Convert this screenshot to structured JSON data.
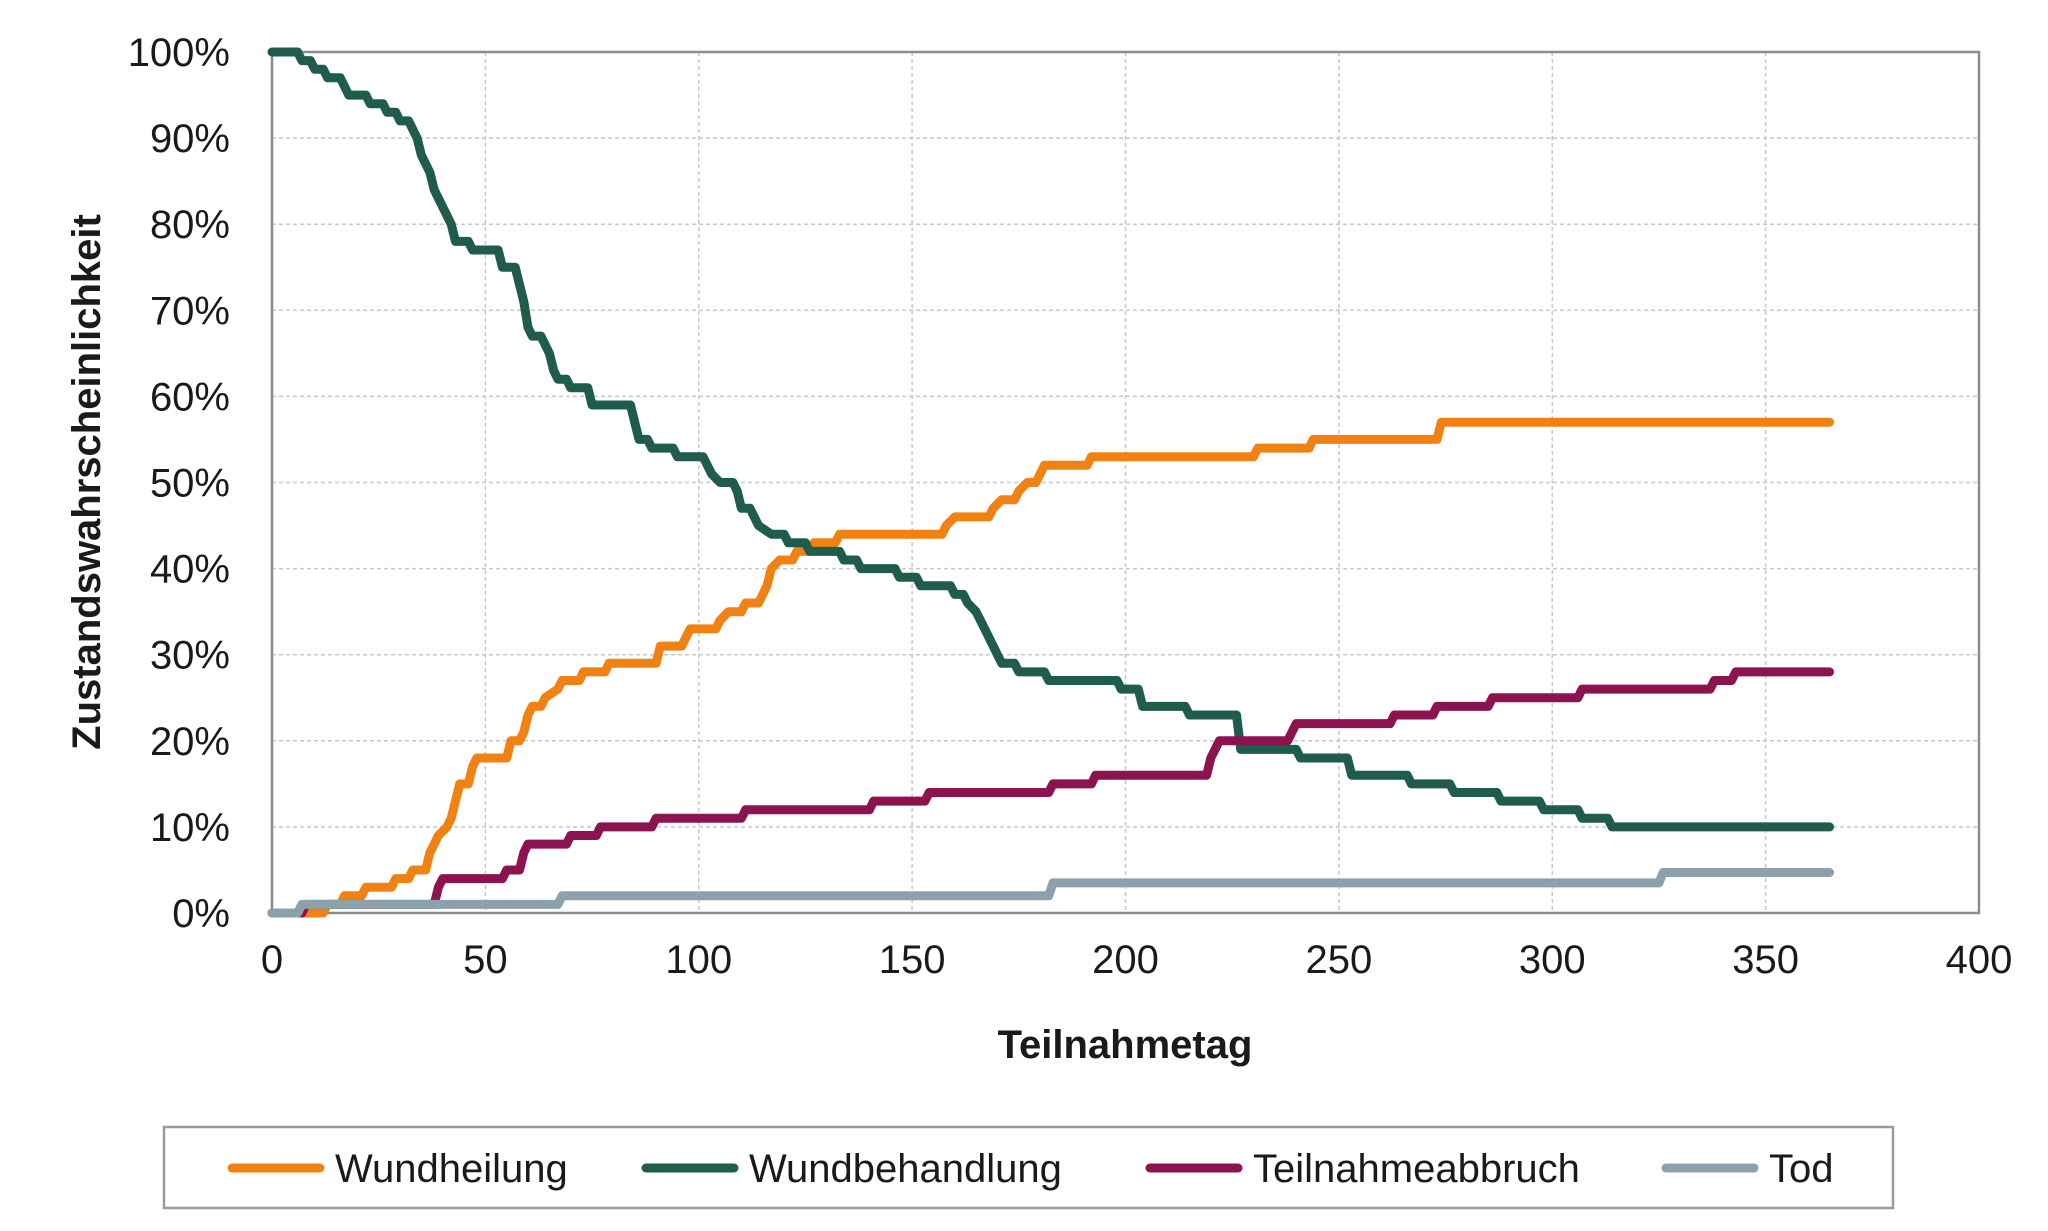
{
  "chart_data": {
    "type": "line",
    "title": "",
    "xlabel": "Teilnahmetag",
    "ylabel": "Zustandswahrscheinlichkeit",
    "xlim": [
      0,
      400
    ],
    "ylim": [
      0,
      100
    ],
    "x_ticks": [
      "0",
      "50",
      "100",
      "150",
      "200",
      "250",
      "300",
      "350",
      "400"
    ],
    "y_ticks": [
      "0%",
      "10%",
      "20%",
      "30%",
      "40%",
      "50%",
      "60%",
      "70%",
      "80%",
      "90%",
      "100%"
    ],
    "grid": true,
    "legend_position": "bottom",
    "step": true,
    "series": [
      {
        "name": "Wundheilung",
        "color": "#f08214",
        "points": [
          [
            0,
            0
          ],
          [
            12,
            0
          ],
          [
            13,
            1
          ],
          [
            16,
            1
          ],
          [
            17,
            2
          ],
          [
            21,
            2
          ],
          [
            22,
            3
          ],
          [
            28,
            3
          ],
          [
            29,
            4
          ],
          [
            32,
            4
          ],
          [
            33,
            5
          ],
          [
            36,
            5
          ],
          [
            37,
            7
          ],
          [
            38,
            8
          ],
          [
            39,
            9
          ],
          [
            41,
            10
          ],
          [
            42,
            11
          ],
          [
            43,
            13
          ],
          [
            44,
            15
          ],
          [
            46,
            15
          ],
          [
            47,
            17
          ],
          [
            48,
            18
          ],
          [
            55,
            18
          ],
          [
            56,
            20
          ],
          [
            58,
            20
          ],
          [
            59,
            21
          ],
          [
            60,
            23
          ],
          [
            61,
            24
          ],
          [
            63,
            24
          ],
          [
            64,
            25
          ],
          [
            67,
            26
          ],
          [
            68,
            27
          ],
          [
            72,
            27
          ],
          [
            73,
            28
          ],
          [
            78,
            28
          ],
          [
            79,
            29
          ],
          [
            90,
            29
          ],
          [
            91,
            31
          ],
          [
            96,
            31
          ],
          [
            97,
            32
          ],
          [
            98,
            33
          ],
          [
            104,
            33
          ],
          [
            105,
            34
          ],
          [
            107,
            35
          ],
          [
            110,
            35
          ],
          [
            111,
            36
          ],
          [
            114,
            36
          ],
          [
            115,
            37
          ],
          [
            116,
            38
          ],
          [
            117,
            40
          ],
          [
            119,
            41
          ],
          [
            122,
            41
          ],
          [
            123,
            42
          ],
          [
            126,
            42
          ],
          [
            127,
            43
          ],
          [
            132,
            43
          ],
          [
            133,
            44
          ],
          [
            157,
            44
          ],
          [
            158,
            45
          ],
          [
            160,
            46
          ],
          [
            168,
            46
          ],
          [
            169,
            47
          ],
          [
            171,
            48
          ],
          [
            174,
            48
          ],
          [
            175,
            49
          ],
          [
            177,
            50
          ],
          [
            179,
            50
          ],
          [
            180,
            51
          ],
          [
            181,
            52
          ],
          [
            191,
            52
          ],
          [
            192,
            53
          ],
          [
            206,
            53
          ],
          [
            207,
            53
          ],
          [
            230,
            53
          ],
          [
            231,
            54
          ],
          [
            243,
            54
          ],
          [
            244,
            55
          ],
          [
            273,
            55
          ],
          [
            274,
            57
          ],
          [
            365,
            57
          ]
        ]
      },
      {
        "name": "Wundbehandlung",
        "color": "#1f5c4d",
        "points": [
          [
            0,
            100
          ],
          [
            6,
            100
          ],
          [
            7,
            99
          ],
          [
            9,
            99
          ],
          [
            10,
            98
          ],
          [
            12,
            98
          ],
          [
            13,
            97
          ],
          [
            16,
            97
          ],
          [
            17,
            96
          ],
          [
            18,
            95
          ],
          [
            22,
            95
          ],
          [
            23,
            94
          ],
          [
            26,
            94
          ],
          [
            27,
            93
          ],
          [
            29,
            93
          ],
          [
            30,
            92
          ],
          [
            32,
            92
          ],
          [
            33,
            91
          ],
          [
            34,
            90
          ],
          [
            35,
            88
          ],
          [
            37,
            86
          ],
          [
            38,
            84
          ],
          [
            40,
            82
          ],
          [
            41,
            81
          ],
          [
            42,
            80
          ],
          [
            43,
            78
          ],
          [
            46,
            78
          ],
          [
            47,
            77
          ],
          [
            53,
            77
          ],
          [
            54,
            75
          ],
          [
            57,
            75
          ],
          [
            58,
            73
          ],
          [
            59,
            71
          ],
          [
            60,
            68
          ],
          [
            61,
            67
          ],
          [
            63,
            67
          ],
          [
            64,
            66
          ],
          [
            65,
            65
          ],
          [
            66,
            63
          ],
          [
            67,
            62
          ],
          [
            69,
            62
          ],
          [
            70,
            61
          ],
          [
            74,
            61
          ],
          [
            75,
            59
          ],
          [
            84,
            59
          ],
          [
            85,
            57
          ],
          [
            86,
            55
          ],
          [
            88,
            55
          ],
          [
            89,
            54
          ],
          [
            94,
            54
          ],
          [
            95,
            53
          ],
          [
            101,
            53
          ],
          [
            102,
            52
          ],
          [
            103,
            51
          ],
          [
            105,
            50
          ],
          [
            108,
            50
          ],
          [
            109,
            49
          ],
          [
            110,
            47
          ],
          [
            112,
            47
          ],
          [
            113,
            46
          ],
          [
            114,
            45
          ],
          [
            117,
            44
          ],
          [
            120,
            44
          ],
          [
            121,
            43
          ],
          [
            125,
            43
          ],
          [
            126,
            42
          ],
          [
            133,
            42
          ],
          [
            134,
            41
          ],
          [
            137,
            41
          ],
          [
            138,
            40
          ],
          [
            146,
            40
          ],
          [
            147,
            39
          ],
          [
            151,
            39
          ],
          [
            152,
            38
          ],
          [
            159,
            38
          ],
          [
            160,
            37
          ],
          [
            162,
            37
          ],
          [
            163,
            36
          ],
          [
            165,
            35
          ],
          [
            166,
            34
          ],
          [
            167,
            33
          ],
          [
            169,
            31
          ],
          [
            171,
            29
          ],
          [
            174,
            29
          ],
          [
            175,
            28
          ],
          [
            181,
            28
          ],
          [
            182,
            27
          ],
          [
            198,
            27
          ],
          [
            199,
            26
          ],
          [
            203,
            26
          ],
          [
            204,
            24
          ],
          [
            214,
            24
          ],
          [
            215,
            23
          ],
          [
            226,
            23
          ],
          [
            227,
            19
          ],
          [
            240,
            19
          ],
          [
            241,
            18
          ],
          [
            252,
            18
          ],
          [
            253,
            16
          ],
          [
            266,
            16
          ],
          [
            267,
            15
          ],
          [
            276,
            15
          ],
          [
            277,
            14
          ],
          [
            287,
            14
          ],
          [
            288,
            13
          ],
          [
            297,
            13
          ],
          [
            298,
            12
          ],
          [
            306,
            12
          ],
          [
            307,
            11
          ],
          [
            313,
            11
          ],
          [
            314,
            10
          ],
          [
            365,
            10
          ]
        ]
      },
      {
        "name": "Teilnahmeabbruch",
        "color": "#8b1450",
        "points": [
          [
            0,
            0
          ],
          [
            7,
            0
          ],
          [
            8,
            1
          ],
          [
            38,
            1
          ],
          [
            39,
            3
          ],
          [
            40,
            4
          ],
          [
            54,
            4
          ],
          [
            55,
            5
          ],
          [
            58,
            5
          ],
          [
            59,
            7
          ],
          [
            60,
            8
          ],
          [
            69,
            8
          ],
          [
            70,
            9
          ],
          [
            76,
            9
          ],
          [
            77,
            10
          ],
          [
            89,
            10
          ],
          [
            90,
            11
          ],
          [
            110,
            11
          ],
          [
            111,
            12
          ],
          [
            140,
            12
          ],
          [
            141,
            13
          ],
          [
            153,
            13
          ],
          [
            154,
            14
          ],
          [
            182,
            14
          ],
          [
            183,
            15
          ],
          [
            192,
            15
          ],
          [
            193,
            16
          ],
          [
            219,
            16
          ],
          [
            220,
            18
          ],
          [
            222,
            20
          ],
          [
            238,
            20
          ],
          [
            239,
            21
          ],
          [
            240,
            22
          ],
          [
            262,
            22
          ],
          [
            263,
            23
          ],
          [
            272,
            23
          ],
          [
            273,
            24
          ],
          [
            285,
            24
          ],
          [
            286,
            25
          ],
          [
            306,
            25
          ],
          [
            307,
            26
          ],
          [
            337,
            26
          ],
          [
            338,
            27
          ],
          [
            342,
            27
          ],
          [
            343,
            28
          ],
          [
            365,
            28
          ]
        ]
      },
      {
        "name": "Tod",
        "color": "#8da1ad",
        "points": [
          [
            0,
            0
          ],
          [
            6,
            0
          ],
          [
            7,
            1
          ],
          [
            67,
            1
          ],
          [
            68,
            2
          ],
          [
            182,
            2
          ],
          [
            183,
            3.5
          ],
          [
            325,
            3.5
          ],
          [
            326,
            4.7
          ],
          [
            365,
            4.7
          ]
        ]
      }
    ]
  }
}
